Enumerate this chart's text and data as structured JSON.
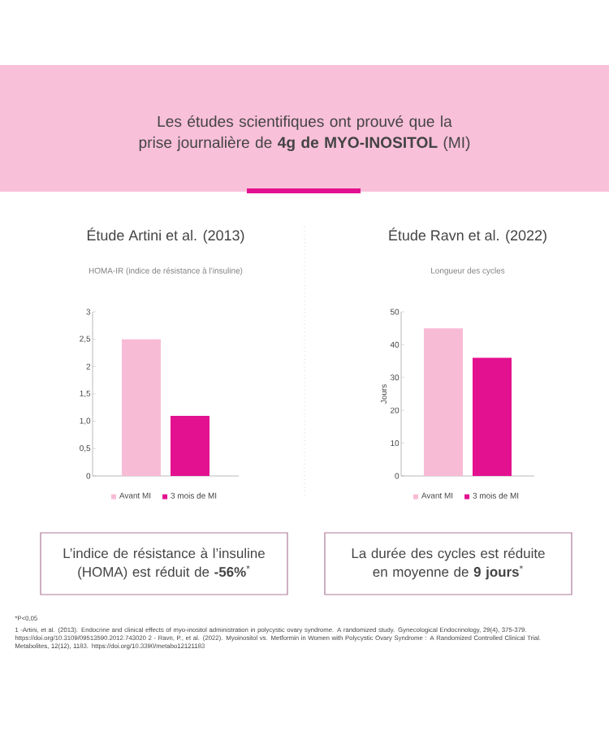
{
  "chart_data": [
    {
      "type": "other",
      "title": "Les études scientifiques ont prouvé que la prise journalière de **4g de MYO-INOSITOL** (MI)",
      "annotations": [
        "*P<0,05",
        "1 -Artini, et al. (2013). Endocrine and clinical effects of myo-inositol administration in polycystic ovary syndrome. A randomized study. Gynecological Endocrinology, 29(4), 375-379. https://doi.org/10.3109/09513590.2012.743020 2 - Ravn, P., et al. (2022). Myoinositol vs. Metformin in Women with Polycystic Ovary Syndrome : A Randomized Controlled Clinical Trial. Metabolites, 12(12), 1183. https://doi.org/10.3390/metabo12121183"
      ]
    },
    {
      "type": "bar",
      "title": "Étude Artini et al. (2013)",
      "subtitle": "HOMA-IR (indice de résistance à l’insuline)",
      "categories": [
        null
      ],
      "series": [
        {
          "name": "Avant MI",
          "color": "#f8bbd6",
          "values": [
            2.5
          ]
        },
        {
          "name": "3 mois de MI",
          "color": "#e3118f",
          "values": [
            1.1
          ]
        }
      ],
      "ylim": [
        0,
        3
      ],
      "yticks": [
        0,
        {
          "value": 0.5,
          "label": "0,5"
        },
        {
          "value": 1,
          "label": "1,0"
        },
        {
          "value": 1.5,
          "label": "1,5"
        },
        2,
        {
          "value": 2.5,
          "label": "2,5"
        },
        3
      ],
      "legend": "bottom",
      "annotations": [
        "L’indice de résistance à l’insuline (HOMA) est réduit de **-56%**$^{*}$"
      ]
    },
    {
      "type": "bar",
      "title": "Étude Ravn et al. (2022)",
      "subtitle": "Longueur des cycles",
      "ylabel": "Jours",
      "categories": [
        null
      ],
      "series": [
        {
          "name": "Avant MI",
          "color": "#f8bbd6",
          "values": [
            45
          ]
        },
        {
          "name": "3 mois de MI",
          "color": "#e3118f",
          "values": [
            36
          ]
        }
      ],
      "ylim": [
        0,
        50
      ],
      "yticks": [
        0,
        10,
        20,
        30,
        40,
        50
      ],
      "legend": "bottom",
      "annotations": [
        "La durée des cycles est réduite en moyenne de **9 jours**$^{*}$"
      ]
    }
  ]
}
